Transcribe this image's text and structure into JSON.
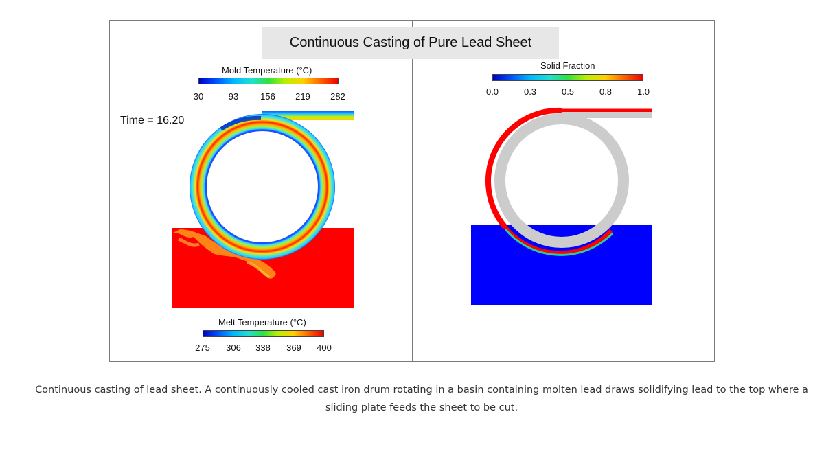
{
  "figure": {
    "title": "Continuous Casting of Pure Lead Sheet",
    "time_label": "Time = 16.20"
  },
  "mold_colorbar": {
    "title": "Mold Temperature (°C)",
    "ticks": [
      "30",
      "93",
      "156",
      "219",
      "282"
    ]
  },
  "melt_colorbar": {
    "title": "Melt Temperature (°C)",
    "ticks": [
      "275",
      "306",
      "338",
      "369",
      "400"
    ]
  },
  "fraction_colorbar": {
    "title": "Solid Fraction",
    "ticks": [
      "0.0",
      "0.3",
      "0.5",
      "0.8",
      "1.0"
    ]
  },
  "colors": {
    "melt": "#ff0000",
    "solid": "#ff0000",
    "liquid": "#0000ff",
    "drum": "#cccccc"
  },
  "caption": "Continuous casting of lead sheet. A continuously cooled cast iron drum rotating in a basin containing molten lead draws solidifying lead to the top where a sliding plate feeds the sheet to be cut."
}
